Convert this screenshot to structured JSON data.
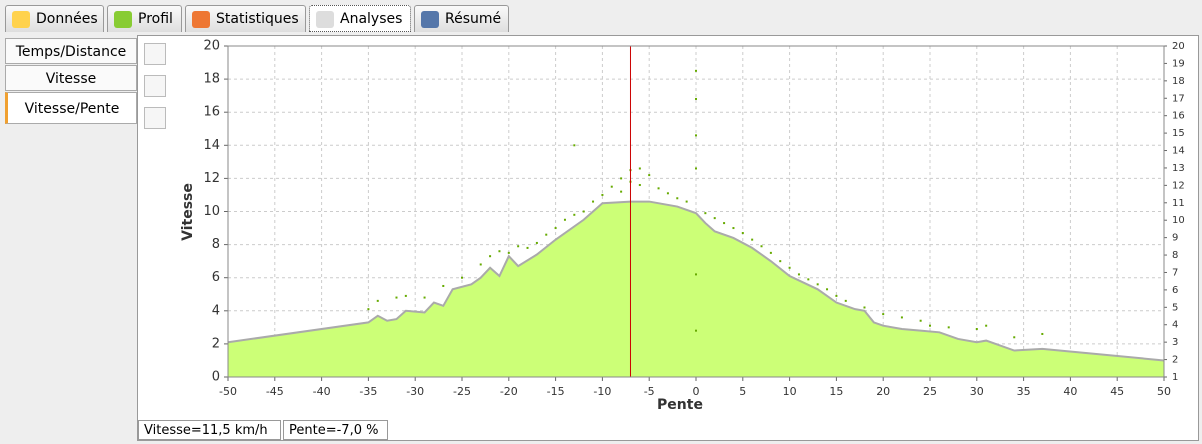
{
  "tabs": {
    "items": [
      "Données",
      "Profil",
      "Statistiques",
      "Analyses",
      "Résumé"
    ],
    "active": 3
  },
  "side_tabs": {
    "items": [
      "Temps/Distance",
      "Vitesse",
      "Vitesse/Pente"
    ],
    "active": 2
  },
  "status": [
    "Vitesse=11,5 km/h",
    "Pente=-7,0 %"
  ],
  "chart_data": {
    "type": "scatter",
    "xlabel": "Pente",
    "ylabel": "Vitesse",
    "xlim": [
      -50,
      50
    ],
    "ylim": [
      0,
      20
    ],
    "y2lim": [
      1,
      20
    ],
    "xticks": [
      -50,
      -45,
      -40,
      -35,
      -30,
      -25,
      -20,
      -15,
      -10,
      -5,
      0,
      5,
      10,
      15,
      20,
      25,
      30,
      35,
      40,
      45,
      50
    ],
    "yticks": [
      0,
      2,
      4,
      6,
      8,
      10,
      12,
      14,
      16,
      18,
      20
    ],
    "y2ticks": [
      1,
      2,
      3,
      4,
      5,
      6,
      7,
      8,
      9,
      10,
      11,
      12,
      13,
      14,
      15,
      16,
      17,
      18,
      19,
      20
    ],
    "grid": true,
    "cursor_x": -7,
    "cursor_color": "#cc0000",
    "area": {
      "color": "#ccff77",
      "line_color": "#aaaaaa",
      "x": [
        -50,
        -35,
        -34,
        -33,
        -32,
        -31,
        -29,
        -28,
        -27,
        -26,
        -24,
        -23,
        -22,
        -21,
        -20,
        -19,
        -17,
        -15,
        -12,
        -10,
        -7,
        -5,
        -2,
        0,
        1,
        2,
        4,
        6,
        8,
        10,
        13,
        15,
        17,
        18,
        19,
        20,
        22,
        24,
        26,
        28,
        30,
        31,
        34,
        37,
        50
      ],
      "values": [
        2.1,
        3.3,
        3.7,
        3.4,
        3.5,
        4.0,
        3.9,
        4.5,
        4.3,
        5.3,
        5.6,
        6.0,
        6.6,
        6.1,
        7.3,
        6.7,
        7.4,
        8.3,
        9.5,
        10.5,
        10.6,
        10.6,
        10.3,
        9.9,
        9.3,
        8.8,
        8.4,
        7.8,
        7.0,
        6.1,
        5.3,
        4.5,
        4.1,
        4.0,
        3.3,
        3.1,
        2.9,
        2.8,
        2.7,
        2.3,
        2.1,
        2.2,
        1.6,
        1.7,
        1.0
      ]
    },
    "points": {
      "color": "#66aa00",
      "x": [
        -35,
        -34,
        -32,
        -31,
        -29,
        -27,
        -25,
        -23,
        -22,
        -21,
        -20,
        -19,
        -18,
        -17,
        -16,
        -15,
        -14,
        -13,
        -13,
        -12,
        -11,
        -10,
        -9,
        -8,
        -8,
        -7,
        -7,
        -6,
        -6,
        -5,
        -4,
        -3,
        -2,
        -1,
        0,
        0,
        0,
        0,
        0,
        0,
        1,
        2,
        3,
        4,
        5,
        6,
        7,
        8,
        9,
        10,
        11,
        12,
        13,
        14,
        15,
        16,
        18,
        20,
        22,
        24,
        25,
        27,
        30,
        31,
        34,
        37
      ],
      "values": [
        4.1,
        4.6,
        4.8,
        4.9,
        4.8,
        5.5,
        6.0,
        6.8,
        7.3,
        7.6,
        7.5,
        7.9,
        7.8,
        8.1,
        8.6,
        9.0,
        9.5,
        9.8,
        14.0,
        10.0,
        10.6,
        11.0,
        11.5,
        12.0,
        11.2,
        12.5,
        11.8,
        12.6,
        11.6,
        12.2,
        11.4,
        11.1,
        10.8,
        10.6,
        18.5,
        16.8,
        14.6,
        12.6,
        6.2,
        2.8,
        9.9,
        9.6,
        9.3,
        9.0,
        8.7,
        8.3,
        7.9,
        7.5,
        7.0,
        6.6,
        6.2,
        5.9,
        5.6,
        5.3,
        4.9,
        4.6,
        4.2,
        3.8,
        3.6,
        3.4,
        3.1,
        3.0,
        2.9,
        3.1,
        2.4,
        2.6
      ]
    }
  }
}
